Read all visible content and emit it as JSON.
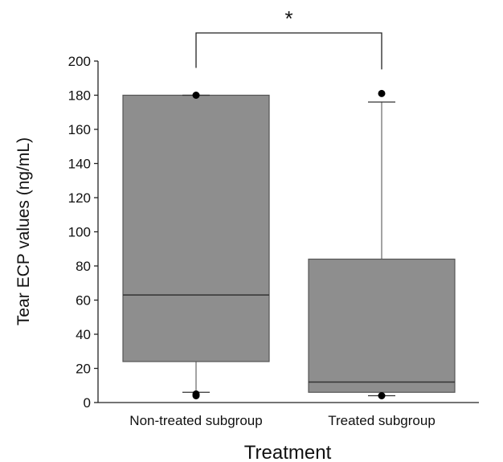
{
  "chart_data": {
    "type": "box",
    "title": "",
    "xlabel": "Treatment",
    "ylabel": "Tear ECP values (ng/mL)",
    "ylim": [
      0,
      200
    ],
    "yticks": [
      0,
      20,
      40,
      60,
      80,
      100,
      120,
      140,
      160,
      180,
      200
    ],
    "categories": [
      "Non-treated subgroup",
      "Treated subgroup"
    ],
    "boxes": [
      {
        "category": "Non-treated subgroup",
        "whisker_low": 6,
        "q1": 24,
        "median": 63,
        "q3": 180,
        "whisker_high": 180,
        "outliers": [
          5,
          4,
          180
        ]
      },
      {
        "category": "Treated subgroup",
        "whisker_low": 4,
        "q1": 6,
        "median": 12,
        "q3": 84,
        "whisker_high": 176,
        "outliers": [
          4,
          181
        ]
      }
    ],
    "annotations": [
      {
        "type": "significance-bracket",
        "between": [
          "Non-treated subgroup",
          "Treated subgroup"
        ],
        "label": "*"
      }
    ],
    "colors": {
      "box_fill": "#8e8e8e",
      "box_stroke": "#555555",
      "line": "#222222"
    },
    "grid": false
  }
}
